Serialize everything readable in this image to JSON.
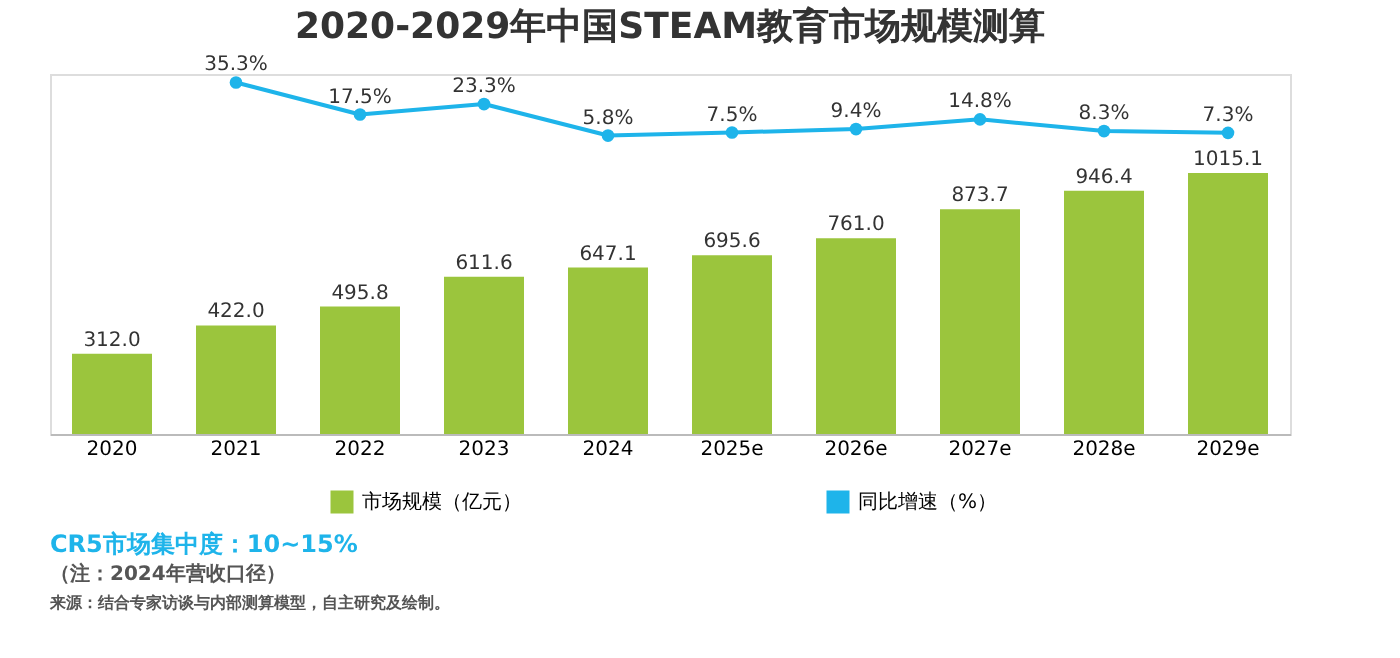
{
  "chart_data": {
    "type": "bar",
    "title": "2020-2029年中国STEAM教育市场规模测算",
    "categories": [
      "2020",
      "2021",
      "2022",
      "2023",
      "2024",
      "2025e",
      "2026e",
      "2027e",
      "2028e",
      "2029e"
    ],
    "series": [
      {
        "name": "市场规模（亿元）",
        "color": "#9bc53d",
        "values": [
          312.0,
          422.0,
          495.8,
          611.6,
          647.1,
          695.6,
          761.0,
          873.7,
          946.4,
          1015.1
        ],
        "value_labels": [
          "312.0",
          "422.0",
          "495.8",
          "611.6",
          "647.1",
          "695.6",
          "761.0",
          "873.7",
          "946.4",
          "1015.1"
        ]
      },
      {
        "name": "同比增速（%）",
        "type": "line",
        "axis": "y2",
        "marker": "circle",
        "color": "#1eb4ea",
        "values": [
          null,
          35.3,
          17.5,
          23.3,
          5.8,
          7.5,
          9.4,
          14.8,
          8.3,
          7.3
        ],
        "value_labels": [
          null,
          "35.3%",
          "17.5%",
          "23.3%",
          "5.8%",
          "7.5%",
          "9.4%",
          "14.8%",
          "8.3%",
          "7.3%"
        ]
      }
    ],
    "ylim": [
      0,
      1400
    ],
    "y2lim": [
      -160,
      40
    ],
    "tick_labels": "x",
    "legend": "bottom",
    "annotations": [
      "CR5市场集中度：10~15%",
      "（注：2024年营收口径）",
      "来源：结合专家访谈与内部测算模型，自主研究及绘制。"
    ]
  }
}
